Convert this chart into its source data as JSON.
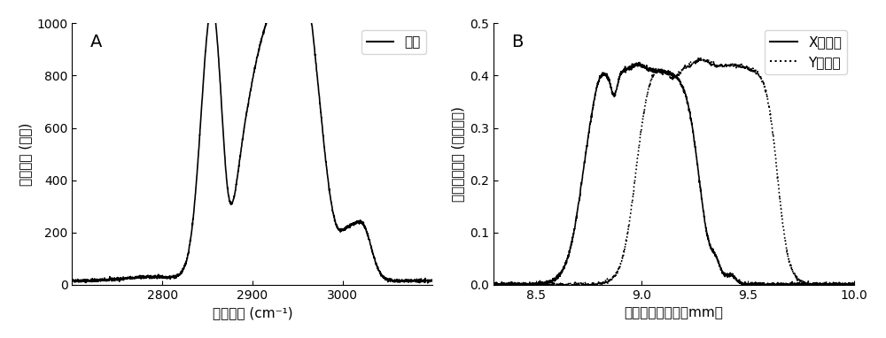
{
  "panel_A": {
    "label": "A",
    "xlabel": "拉曼频移 (cm⁻¹)",
    "ylabel": "拉曼强度 (任意)",
    "legend_label": "油酸",
    "xlim": [
      2700,
      3100
    ],
    "ylim": [
      0,
      1000
    ],
    "xticks": [
      2800,
      2900,
      3000
    ],
    "yticks": [
      0,
      200,
      400,
      600,
      800,
      1000
    ]
  },
  "panel_B": {
    "label": "B",
    "xlabel": "光学延迟线位置（mm）",
    "ylabel": "受激拉曼强度 (任意单位)",
    "legend_solid": "X，油酸",
    "legend_dotted": "Y，油酸",
    "xlim": [
      8.3,
      10.0
    ],
    "ylim": [
      0,
      0.5
    ],
    "xticks": [
      8.5,
      9.0,
      9.5,
      10.0
    ],
    "yticks": [
      0.0,
      0.1,
      0.2,
      0.3,
      0.4,
      0.5
    ]
  },
  "line_color": "#000000",
  "background_color": "#ffffff",
  "font_size": 11
}
